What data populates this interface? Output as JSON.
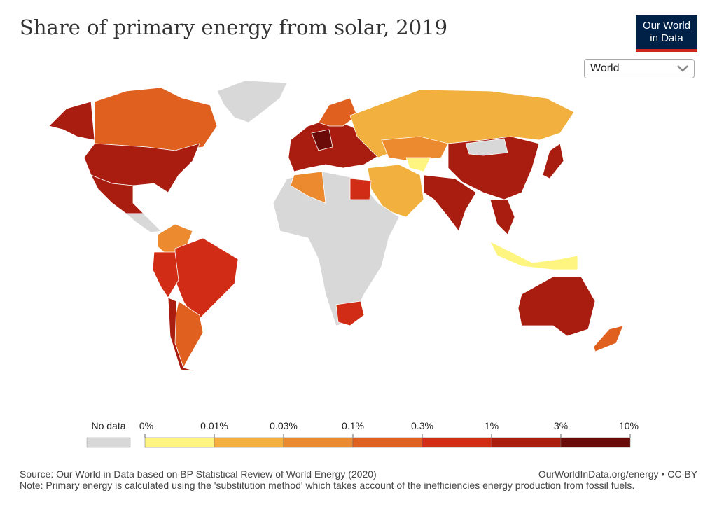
{
  "header": {
    "title": "Share of primary energy from solar, 2019",
    "logo": [
      "Our World",
      "in Data"
    ],
    "selector": "World"
  },
  "legend": {
    "no_data": "No data",
    "no_data_color": "#d8d8d8",
    "ticks": [
      {
        "value": 0,
        "label": "0%"
      },
      {
        "value": 0.01,
        "label": "0.01%"
      },
      {
        "value": 0.03,
        "label": "0.03%"
      },
      {
        "value": 0.1,
        "label": "0.1%"
      },
      {
        "value": 0.3,
        "label": "0.3%"
      },
      {
        "value": 1,
        "label": "1%"
      },
      {
        "value": 3,
        "label": "3%"
      },
      {
        "value": 10,
        "label": "10%"
      }
    ],
    "colors": [
      "#fdf57f",
      "#f2b13f",
      "#ec8a2f",
      "#e0601f",
      "#d02c16",
      "#a91c10",
      "#6b0b09"
    ]
  },
  "footer": {
    "source": "Source: Our World in Data based on BP Statistical Review of World Energy (2020)",
    "url": "OurWorldInData.org/energy • CC BY",
    "note": "Note: Primary energy is calculated using the 'substitution method' which takes account of the inefficiencies energy production from fossil fuels."
  }
}
